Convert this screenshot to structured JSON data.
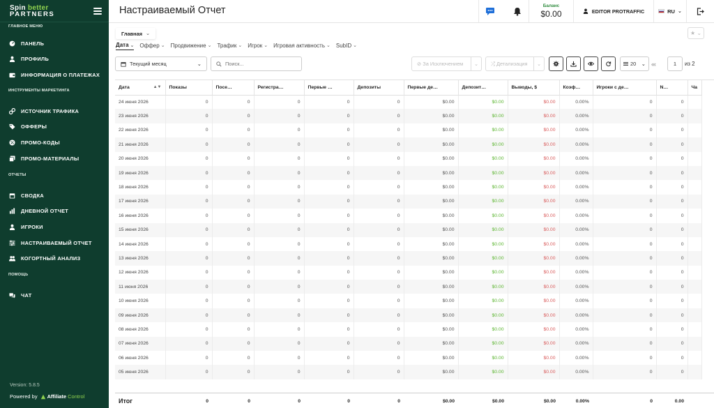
{
  "sidebar": {
    "logo_line1_a": "Spin",
    "logo_line1_b": "better",
    "logo_line2": "PARTNERS",
    "sections": [
      {
        "title": "ГЛАВНОЕ МЕНЮ",
        "items": [
          {
            "label": "ПАНЕЛЬ",
            "icon": "dashboard-icon"
          },
          {
            "label": "ПРОФИЛЬ",
            "icon": "user-icon"
          },
          {
            "label": "ИНФОРМАЦИЯ О ПЛАТЕЖАХ",
            "icon": "wallet-icon"
          }
        ]
      },
      {
        "title": "ИНСТРУМЕНТЫ МАРКЕТИНГА",
        "items": [
          {
            "label": "ИСТОЧНИК ТРАФИКА",
            "icon": "link-icon"
          },
          {
            "label": "ОФФЕРЫ",
            "icon": "tag-icon"
          },
          {
            "label": "ПРОМО-КОДЫ",
            "icon": "percent-icon"
          },
          {
            "label": "ПРОМО-МАТЕРИАЛЫ",
            "icon": "images-icon"
          }
        ]
      },
      {
        "title": "ОТЧЕТЫ",
        "items": [
          {
            "label": "СВОДКА",
            "icon": "calendar-icon"
          },
          {
            "label": "ДНЕВНОЙ ОТЧЕТ",
            "icon": "chart-icon"
          },
          {
            "label": "ИГРОКИ",
            "icon": "user-icon"
          },
          {
            "label": "НАСТРАИВАЕМЫЙ ОТЧЕТ",
            "icon": "sliders-icon"
          },
          {
            "label": "КОГОРТНЫЙ АНАЛИЗ",
            "icon": "users-icon"
          }
        ]
      },
      {
        "title": "ПОМОЩЬ",
        "items": [
          {
            "label": "ЧАТ",
            "icon": "chat-icon"
          }
        ]
      }
    ],
    "version": "Version: 5.8.5",
    "powered_by": "Powered by",
    "powered_brand": "Affiliate",
    "powered_brand2": "Control"
  },
  "header": {
    "title": "Настраиваемый Отчет",
    "balance_label": "Баланс",
    "balance_value": "$0.00",
    "user": "EDITOR PROTRAFFIC",
    "lang": "RU"
  },
  "toolbar": {
    "tab": "Главная",
    "groupings": [
      "Дата",
      "Оффер",
      "Продвижение",
      "Трафик",
      "Игрок",
      "Игровая активность",
      "SubID"
    ],
    "date_range": "Текущий месяц",
    "search_placeholder": "Поиск...",
    "exclusions": "За Исключением",
    "detail": "Детализация",
    "per_page": "20",
    "page": "1",
    "page_of": "из 2"
  },
  "table": {
    "columns": [
      "Дата",
      "Показы",
      "Посе…",
      "Регистра…",
      "Первые …",
      "Депозиты",
      "Первые де…",
      "Депозит…",
      "Выводы, $",
      "Коэф…",
      "Игроки с де…",
      "N…",
      "Ча"
    ],
    "dates": [
      "24 июня 2026",
      "23 июня 2026",
      "22 июня 2026",
      "21 июня 2026",
      "20 июня 2026",
      "19 июня 2026",
      "18 июня 2026",
      "17 июня 2026",
      "16 июня 2026",
      "15 июня 2026",
      "14 июня 2026",
      "13 июня 2026",
      "12 июня 2026",
      "11 июня 2026",
      "10 июня 2026",
      "09 июня 2026",
      "08 июня 2026",
      "07 июня 2026",
      "06 июня 2026",
      "05 июня 2026"
    ],
    "row_values": [
      "0",
      "0",
      "0",
      "0",
      "0",
      "$0.00",
      "$0.00",
      "$0.00",
      "0.00%",
      "0",
      "0"
    ],
    "total_label": "Итог",
    "total_values": [
      "0",
      "0",
      "0",
      "0",
      "0",
      "$0.00",
      "$0.00",
      "$0.00",
      "0.00%",
      "0",
      "0.00"
    ]
  },
  "colors": {
    "sidebar": "#0f3d2e",
    "green": "#5cb531",
    "red": "#d95b5b"
  }
}
